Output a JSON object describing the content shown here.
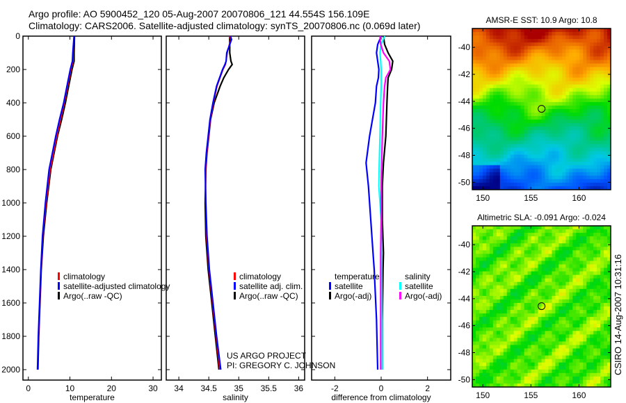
{
  "header": {
    "line1": "Argo profile: AO 5900452_120 05-Aug-2007 20070806_121 44.554S 156.109E",
    "line2": "Climatology: CARS2006. Satellite-adjusted climatology: synTS_20070806.nc (0.069d later)"
  },
  "credits": {
    "project": "US ARGO PROJECT",
    "pi": "PI: GREGORY C. JOHNSON",
    "stamp": "CSIRO 14-Aug-2007 10:31:16"
  },
  "chart_data": [
    {
      "type": "line",
      "id": "temperature",
      "xlabel": "temperature",
      "ylabel": "",
      "xlim": [
        -1.3,
        32
      ],
      "ylim": [
        2060,
        0
      ],
      "xticks": [
        0,
        10,
        20,
        30
      ],
      "yticks": [
        0,
        200,
        400,
        600,
        800,
        1000,
        1200,
        1400,
        1600,
        1800,
        2000
      ],
      "legend": [
        "climatology",
        "satellite-adjusted climatology",
        "Argo(..raw -QC)"
      ],
      "legend_placement": "lower-middle",
      "depth": [
        0,
        100,
        150,
        200,
        300,
        400,
        500,
        600,
        800,
        1000,
        1200,
        1400,
        1600,
        1800,
        2000
      ],
      "series": [
        {
          "name": "Argo(..raw -QC)",
          "color": "#000000",
          "values": [
            11.1,
            11.0,
            11.0,
            10.5,
            9.7,
            8.9,
            8.0,
            7.0,
            5.4,
            4.4,
            3.6,
            3.1,
            2.8,
            2.5,
            2.3
          ]
        },
        {
          "name": "climatology",
          "color": "#ff0000",
          "values": [
            11.0,
            10.8,
            10.8,
            10.3,
            9.5,
            8.7,
            7.8,
            6.9,
            5.3,
            4.3,
            3.5,
            3.1,
            2.8,
            2.5,
            2.2
          ]
        },
        {
          "name": "satellite-adjusted climatology",
          "color": "#0000ff",
          "values": [
            11.0,
            10.7,
            10.6,
            10.1,
            9.3,
            8.5,
            7.5,
            6.6,
            5.0,
            4.1,
            3.4,
            3.0,
            2.7,
            2.4,
            2.2
          ]
        }
      ]
    },
    {
      "type": "line",
      "id": "salinity",
      "xlabel": "salinity",
      "xlim": [
        33.79,
        36.1
      ],
      "ylim": [
        2060,
        0
      ],
      "xticks": [
        34,
        34.5,
        35,
        35.5,
        36
      ],
      "legend": [
        "climatology",
        "satellite adj. clim.",
        "Argo(..raw -QC)"
      ],
      "legend_placement": "lower-middle",
      "depth": [
        0,
        20,
        50,
        100,
        150,
        170,
        200,
        250,
        300,
        400,
        500,
        600,
        700,
        800,
        1000,
        1200,
        1400,
        1600,
        1800,
        2000
      ],
      "series": [
        {
          "name": "Argo(..raw -QC)",
          "color": "#000000",
          "values": [
            34.85,
            34.85,
            34.85,
            34.85,
            34.87,
            34.89,
            34.83,
            34.75,
            34.69,
            34.59,
            34.53,
            34.5,
            34.47,
            34.45,
            34.44,
            34.45,
            34.49,
            34.55,
            34.61,
            34.67
          ]
        },
        {
          "name": "climatology",
          "color": "#ff0000",
          "values": [
            34.84,
            34.87,
            34.84,
            34.81,
            34.79,
            34.78,
            34.74,
            34.69,
            34.64,
            34.58,
            34.53,
            34.5,
            34.47,
            34.45,
            34.45,
            34.46,
            34.5,
            34.56,
            34.62,
            34.68
          ]
        },
        {
          "name": "satellite adj. clim.",
          "color": "#0000ff",
          "values": [
            34.86,
            34.88,
            34.85,
            34.8,
            34.79,
            34.77,
            34.73,
            34.68,
            34.63,
            34.57,
            34.52,
            34.49,
            34.46,
            34.44,
            34.45,
            34.47,
            34.51,
            34.57,
            34.63,
            34.7
          ]
        }
      ]
    },
    {
      "type": "line",
      "id": "difference",
      "xlabel": "difference from climatology",
      "xlim": [
        -3,
        3
      ],
      "ylim": [
        2060,
        0
      ],
      "xticks": [
        -2,
        0,
        2
      ],
      "legend_headers": [
        "temperature",
        "salinity"
      ],
      "legend": [
        "satellite",
        "Argo(-adj)",
        "satellite",
        "Argo(-adj)"
      ],
      "legend_placement": "lower-middle",
      "depth": [
        0,
        50,
        100,
        150,
        200,
        250,
        300,
        400,
        600,
        760,
        900,
        1100,
        1300,
        1400,
        1700,
        2000
      ],
      "series": [
        {
          "name": "temperature satellite",
          "color": "#0000ff",
          "values": [
            0.0,
            -0.15,
            -0.2,
            -0.15,
            -0.1,
            -0.12,
            -0.2,
            -0.25,
            -0.5,
            -0.65,
            -0.55,
            -0.45,
            -0.35,
            -0.3,
            -0.2,
            -0.15
          ]
        },
        {
          "name": "temperature Argo(-adj)",
          "color": "#000000",
          "values": [
            0.1,
            0.15,
            0.3,
            0.5,
            0.45,
            0.3,
            0.28,
            0.25,
            0.2,
            0.1,
            0.05,
            0.05,
            0.1,
            0.08,
            0.05,
            0.05
          ]
        },
        {
          "name": "salinity satellite",
          "color": "#00ffff",
          "values": [
            0.15,
            0.0,
            -0.05,
            -0.02,
            0.0,
            0.0,
            0.0,
            -0.02,
            -0.05,
            -0.08,
            -0.1,
            0.0,
            0.02,
            0.02,
            0.04,
            0.05
          ]
        },
        {
          "name": "salinity Argo(-adj)",
          "color": "#ff00ff",
          "values": [
            -0.05,
            -0.02,
            0.1,
            0.35,
            0.4,
            0.2,
            0.15,
            0.1,
            0.05,
            0.02,
            0.0,
            0.0,
            -0.02,
            -0.02,
            -0.02,
            -0.02
          ]
        }
      ]
    },
    {
      "type": "heatmap",
      "id": "sst-map",
      "title": "AMSR-E SST: 10.9 Argo: 10.8",
      "xlim": [
        148.9,
        163.3
      ],
      "ylim": [
        -50.55,
        -38.6
      ],
      "xticks": [
        150,
        155,
        160
      ],
      "yticks": [
        -40,
        -42,
        -44,
        -46,
        -48,
        -50
      ],
      "marker": {
        "lon": 156.109,
        "lat": -44.554
      }
    },
    {
      "type": "heatmap",
      "id": "sla-map",
      "title": "Altimetric SLA: -0.091 Argo: -0.024",
      "xlim": [
        148.9,
        163.3
      ],
      "ylim": [
        -50.55,
        -38.6
      ],
      "xticks": [
        150,
        155,
        160
      ],
      "yticks": [
        -40,
        -42,
        -44,
        -46,
        -48,
        -50
      ],
      "marker": {
        "lon": 156.109,
        "lat": -44.554
      }
    }
  ]
}
